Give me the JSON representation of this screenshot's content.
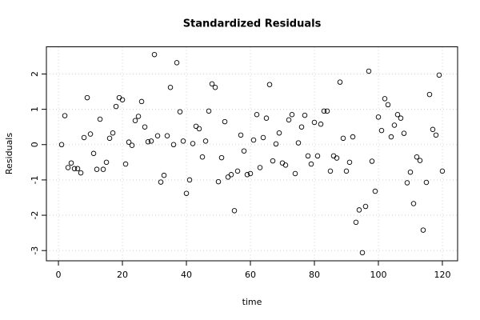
{
  "chart_data": {
    "type": "scatter",
    "title": "Standardized Residuals",
    "x_label": "time",
    "y_label": "Residuals",
    "x": [
      1,
      2,
      3,
      4,
      5,
      6,
      7,
      8,
      9,
      10,
      11,
      12,
      13,
      14,
      15,
      16,
      17,
      18,
      19,
      20,
      21,
      22,
      23,
      24,
      25,
      26,
      27,
      28,
      29,
      30,
      31,
      32,
      33,
      34,
      35,
      36,
      37,
      38,
      39,
      40,
      41,
      42,
      43,
      44,
      45,
      46,
      47,
      48,
      49,
      50,
      51,
      52,
      53,
      54,
      55,
      56,
      57,
      58,
      59,
      60,
      61,
      62,
      63,
      64,
      65,
      66,
      67,
      68,
      69,
      70,
      71,
      72,
      73,
      74,
      75,
      76,
      77,
      78,
      79,
      80,
      81,
      82,
      83,
      84,
      85,
      86,
      87,
      88,
      89,
      90,
      91,
      92,
      93,
      94,
      95,
      96,
      97,
      98,
      99,
      100,
      101,
      102,
      103,
      104,
      105,
      106,
      107,
      108,
      109,
      110,
      111,
      112,
      113,
      114,
      115,
      116,
      117,
      118,
      119,
      120
    ],
    "values": [
      0.0,
      0.82,
      -0.65,
      -0.52,
      -0.68,
      -0.68,
      -0.8,
      0.2,
      1.33,
      0.3,
      -0.25,
      -0.7,
      0.72,
      -0.7,
      -0.5,
      0.18,
      0.33,
      1.08,
      1.33,
      1.27,
      -0.55,
      0.07,
      -0.02,
      0.68,
      0.8,
      1.22,
      0.5,
      0.08,
      0.1,
      2.55,
      0.25,
      -1.06,
      -0.87,
      0.25,
      1.62,
      0.0,
      2.32,
      0.93,
      0.1,
      -1.38,
      -1.0,
      0.03,
      0.52,
      0.45,
      -0.35,
      0.1,
      0.95,
      1.72,
      1.62,
      -1.05,
      -0.37,
      0.65,
      -0.92,
      -0.85,
      -1.87,
      -0.75,
      0.27,
      -0.18,
      -0.85,
      -0.82,
      0.13,
      0.85,
      -0.65,
      0.2,
      0.75,
      1.7,
      -0.46,
      0.02,
      0.33,
      -0.52,
      -0.58,
      0.7,
      0.85,
      -0.82,
      0.05,
      0.5,
      0.83,
      -0.32,
      -0.55,
      0.63,
      -0.32,
      0.58,
      0.95,
      0.95,
      -0.75,
      -0.32,
      -0.38,
      1.77,
      0.18,
      -0.75,
      -0.5,
      0.22,
      -2.2,
      -1.85,
      -3.06,
      -1.75,
      2.08,
      -0.47,
      -1.32,
      0.78,
      0.4,
      1.3,
      1.13,
      0.22,
      0.55,
      0.85,
      0.75,
      0.32,
      -1.08,
      -0.78,
      -1.67,
      -0.35,
      -0.45,
      -2.42,
      -1.07,
      1.42,
      0.43,
      0.27,
      1.97,
      -0.75
    ],
    "color": "#000000",
    "xlim": [
      -3.76,
      124.76
    ],
    "xticks": [
      0,
      20,
      40,
      60,
      80,
      100,
      120
    ],
    "ylim": [
      -3.29,
      2.77
    ],
    "yticks": [
      -3,
      -2,
      -1,
      0,
      1,
      2
    ],
    "grid": true
  }
}
